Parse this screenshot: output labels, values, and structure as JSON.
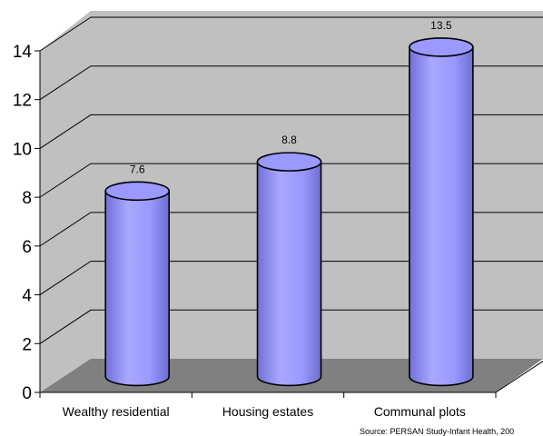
{
  "chart_data": {
    "type": "bar",
    "style": "3d-cylinder",
    "categories": [
      "Wealthy residential",
      "Housing estates",
      "Communal plots"
    ],
    "values": [
      7.6,
      8.8,
      13.5
    ],
    "data_labels": [
      "7.6",
      "8.8",
      "13.5"
    ],
    "yticks": [
      "0",
      "2",
      "4",
      "6",
      "8",
      "10",
      "12",
      "14"
    ],
    "ylim": [
      0,
      14
    ],
    "grid": true,
    "legend": "none",
    "source_note": "Source: PERSAN Study-Infant Health, 200",
    "colors": {
      "bar_fill": "#9999ff",
      "bar_top": "#9999ff",
      "back_wall": "#c0c0c0",
      "floor": "#808080",
      "gridline": "#000000"
    }
  }
}
